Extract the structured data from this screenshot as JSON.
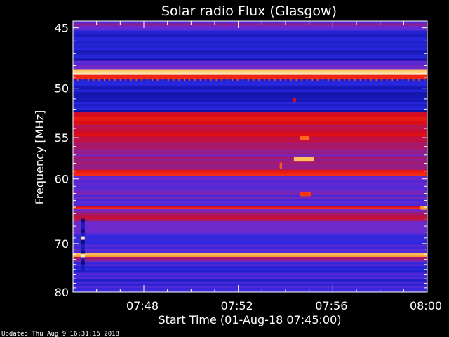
{
  "chart_data": {
    "type": "heatmap",
    "title": "Solar radio Flux (Glasgow)",
    "xlabel": "Start Time (01-Aug-18 07:45:00)",
    "ylabel": "Frequency [MHz]",
    "updated": "Updated Thu Aug  9 16:31:15 2018",
    "x_ticks": [
      "07:48",
      "07:52",
      "07:56",
      "08:00"
    ],
    "x_tick_minutes": [
      3,
      7,
      11,
      15
    ],
    "xlim_minutes": [
      0,
      15
    ],
    "y_ticks": [
      45,
      50,
      55,
      60,
      70,
      80
    ],
    "ylim": [
      44.5,
      80
    ],
    "y_scale": "reciprocal",
    "colormap": [
      "#000000",
      "#1010a0",
      "#2828e0",
      "#6a2ad0",
      "#a8186a",
      "#d80a18",
      "#ff3a10",
      "#ff9a30",
      "#ffd070",
      "#ffffff"
    ],
    "background_level": 0.3,
    "bands": [
      {
        "f0": 44.5,
        "f1": 45.2,
        "level": 0.35
      },
      {
        "f0": 45.2,
        "f1": 47.6,
        "level": 0.18
      },
      {
        "f0": 47.6,
        "f1": 48.3,
        "level": 0.3
      },
      {
        "f0": 48.3,
        "f1": 48.8,
        "level": 0.9
      },
      {
        "f0": 48.8,
        "f1": 49.2,
        "level": 0.6
      },
      {
        "f0": 49.2,
        "f1": 52.3,
        "level": 0.17
      },
      {
        "f0": 52.3,
        "f1": 52.8,
        "level": 0.55
      },
      {
        "f0": 52.8,
        "f1": 53.4,
        "level": 0.6
      },
      {
        "f0": 53.4,
        "f1": 55.5,
        "level": 0.52
      },
      {
        "f0": 55.5,
        "f1": 56.4,
        "level": 0.46
      },
      {
        "f0": 56.4,
        "f1": 58.8,
        "level": 0.4
      },
      {
        "f0": 58.8,
        "f1": 59.6,
        "level": 0.58
      },
      {
        "f0": 59.6,
        "f1": 63.8,
        "level": 0.32
      },
      {
        "f0": 63.8,
        "f1": 64.3,
        "level": 0.58
      },
      {
        "f0": 64.3,
        "f1": 65.0,
        "level": 0.38
      },
      {
        "f0": 65.0,
        "f1": 65.5,
        "level": 0.5
      },
      {
        "f0": 65.5,
        "f1": 66.2,
        "level": 0.5
      },
      {
        "f0": 66.2,
        "f1": 71.8,
        "level": 0.29
      },
      {
        "f0": 71.8,
        "f1": 72.5,
        "level": 0.82
      },
      {
        "f0": 72.5,
        "f1": 73.5,
        "level": 0.4
      },
      {
        "f0": 73.5,
        "f1": 80.0,
        "level": 0.24
      }
    ],
    "bursts": [
      {
        "t0": 9.3,
        "t1": 9.45,
        "f0": 50.9,
        "f1": 51.3,
        "level": 0.55
      },
      {
        "t0": 9.6,
        "t1": 10.0,
        "f0": 54.8,
        "f1": 55.3,
        "level": 0.72
      },
      {
        "t0": 9.35,
        "t1": 10.2,
        "f0": 57.2,
        "f1": 57.8,
        "level": 0.86
      },
      {
        "t0": 8.75,
        "t1": 8.85,
        "f0": 57.9,
        "f1": 58.7,
        "level": 0.7
      },
      {
        "t0": 9.6,
        "t1": 10.1,
        "f0": 61.8,
        "f1": 62.4,
        "level": 0.66
      },
      {
        "t0": 14.7,
        "t1": 15.0,
        "f0": 63.8,
        "f1": 64.4,
        "level": 0.78
      }
    ],
    "data_gap_column": {
      "t0": 0.35,
      "t1": 0.5,
      "f0": 65.8,
      "f1": 74.8
    }
  }
}
